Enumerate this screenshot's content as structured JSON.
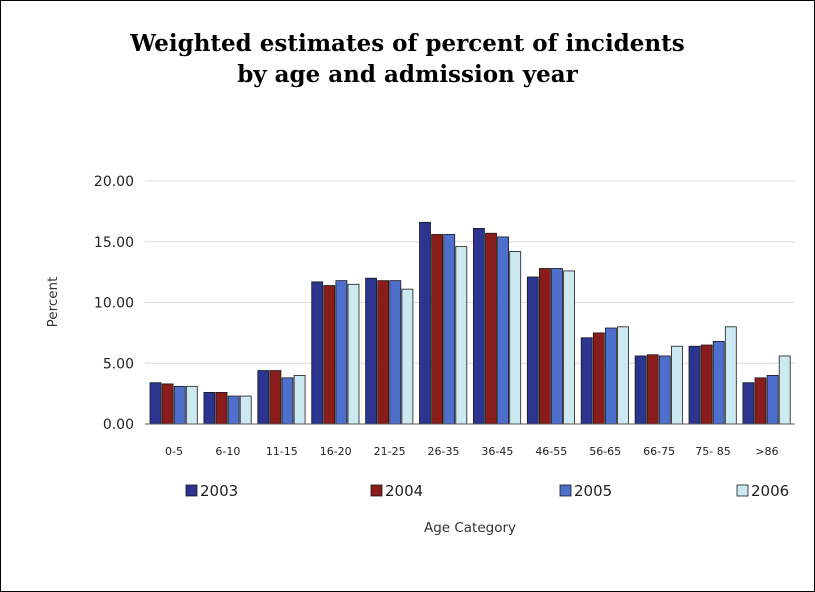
{
  "chart_data": {
    "type": "bar",
    "title_line1": "Weighted estimates of percent of incidents",
    "title_line2": "by age and admission year",
    "xlabel": "Age Category",
    "ylabel": "Percent",
    "ylim": [
      0,
      20
    ],
    "yticks": [
      "0.00",
      "5.00",
      "10.00",
      "15.00",
      "20.00"
    ],
    "ytick_values": [
      0,
      5,
      10,
      15,
      20
    ],
    "grid": true,
    "legend_position": "bottom",
    "categories": [
      "0-5",
      "6-10",
      "11-15",
      "16-20",
      "21-25",
      "26-35",
      "36-45",
      "46-55",
      "56-65",
      "66-75",
      "75- 85",
      ">86"
    ],
    "series": [
      {
        "name": "2003",
        "color": "#2b3590",
        "values": [
          3.4,
          2.6,
          4.4,
          11.7,
          12.0,
          16.6,
          16.1,
          12.1,
          7.1,
          5.6,
          6.4,
          3.4
        ]
      },
      {
        "name": "2004",
        "color": "#8b1c1c",
        "values": [
          3.3,
          2.6,
          4.4,
          11.4,
          11.8,
          15.6,
          15.7,
          12.8,
          7.5,
          5.7,
          6.5,
          3.8
        ]
      },
      {
        "name": "2005",
        "color": "#4f6fcc",
        "values": [
          3.1,
          2.3,
          3.8,
          11.8,
          11.8,
          15.6,
          15.4,
          12.8,
          7.9,
          5.6,
          6.8,
          4.0
        ]
      },
      {
        "name": "2006",
        "color": "#cce8f0",
        "values": [
          3.1,
          2.3,
          4.0,
          11.5,
          11.1,
          14.6,
          14.2,
          12.6,
          8.0,
          6.4,
          8.0,
          5.6
        ]
      }
    ]
  }
}
